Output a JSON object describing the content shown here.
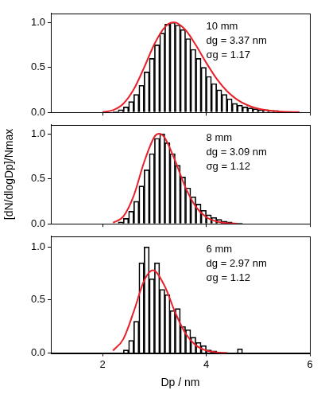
{
  "chart_data": [
    {
      "type": "histogram",
      "annotations": [
        "10 mm",
        "dg = 3.37 nm",
        "σg = 1.17"
      ],
      "bins": [
        2.2,
        2.3,
        2.4,
        2.5,
        2.6,
        2.7,
        2.8,
        2.9,
        3.0,
        3.1,
        3.2,
        3.3,
        3.4,
        3.5,
        3.6,
        3.7,
        3.8,
        3.9,
        4.0,
        4.1,
        4.2,
        4.3,
        4.4,
        4.5,
        4.6,
        4.7,
        4.8,
        4.9,
        5.0,
        5.1,
        5.2,
        5.3,
        5.4,
        5.5,
        5.6
      ],
      "counts": [
        0.01,
        0.03,
        0.06,
        0.12,
        0.2,
        0.3,
        0.45,
        0.6,
        0.75,
        0.88,
        0.98,
        1.0,
        0.97,
        0.92,
        0.82,
        0.7,
        0.6,
        0.5,
        0.4,
        0.32,
        0.25,
        0.2,
        0.15,
        0.1,
        0.08,
        0.06,
        0.05,
        0.04,
        0.03,
        0.03,
        0.02,
        0.02,
        0.01,
        0.01
      ],
      "color": "#000000",
      "series": [
        {
          "type": "line",
          "color": "#e8202a",
          "x": [
            2.0,
            2.2,
            2.4,
            2.6,
            2.8,
            3.0,
            3.2,
            3.37,
            3.6,
            3.8,
            4.0,
            4.2,
            4.4,
            4.6,
            4.8,
            5.0,
            5.4,
            5.8
          ],
          "values": [
            0.004,
            0.025,
            0.097,
            0.255,
            0.498,
            0.76,
            0.947,
            1.0,
            0.915,
            0.746,
            0.551,
            0.374,
            0.236,
            0.14,
            0.079,
            0.042,
            0.011,
            0.003
          ]
        }
      ],
      "xlim": [
        1,
        6
      ],
      "xticks": [
        2,
        4,
        6
      ],
      "ylim": [
        0,
        1.1
      ],
      "yticks": [
        {
          "value": 0,
          "label": "0.0"
        },
        {
          "value": 0.5,
          "label": "0.5"
        },
        {
          "value": 1,
          "label": "1.0"
        }
      ],
      "grid": false,
      "tick_labels": "y"
    },
    {
      "type": "histogram",
      "ylabel": "[dN/dlogDp]/Nmax",
      "annotations": [
        "8 mm",
        "dg = 3.09 nm",
        "σg = 1.12"
      ],
      "bins": [
        2.3,
        2.4,
        2.5,
        2.6,
        2.7,
        2.8,
        2.9,
        3.0,
        3.1,
        3.2,
        3.3,
        3.4,
        3.5,
        3.6,
        3.7,
        3.8,
        3.9,
        4.0,
        4.1,
        4.2,
        4.3,
        4.4,
        4.5,
        4.6,
        4.7
      ],
      "counts": [
        0.02,
        0.06,
        0.14,
        0.25,
        0.42,
        0.6,
        0.78,
        0.95,
        1.0,
        0.9,
        0.78,
        0.65,
        0.52,
        0.4,
        0.3,
        0.22,
        0.15,
        0.1,
        0.07,
        0.05,
        0.03,
        0.02,
        0.01,
        0.01
      ],
      "color": "#000000",
      "series": [
        {
          "type": "line",
          "color": "#e8202a",
          "x": [
            2.2,
            2.4,
            2.6,
            2.8,
            3.0,
            3.09,
            3.2,
            3.4,
            3.6,
            3.8,
            4.0,
            4.2,
            4.4,
            4.6
          ],
          "values": [
            0.011,
            0.083,
            0.313,
            0.685,
            0.967,
            1.0,
            0.954,
            0.7,
            0.403,
            0.189,
            0.075,
            0.026,
            0.008,
            0.002
          ]
        }
      ],
      "xlim": [
        1,
        6
      ],
      "xticks": [
        2,
        4,
        6
      ],
      "ylim": [
        0,
        1.1
      ],
      "yticks": [
        {
          "value": 0,
          "label": "0.0"
        },
        {
          "value": 0.5,
          "label": "0.5"
        },
        {
          "value": 1,
          "label": "1.0"
        }
      ],
      "grid": false,
      "tick_labels": "y"
    },
    {
      "type": "histogram",
      "xlabel": "Dp / nm",
      "annotations": [
        "6 mm",
        "dg = 2.97 nm",
        "σg = 1.12"
      ],
      "bins": [
        2.4,
        2.5,
        2.6,
        2.7,
        2.8,
        2.9,
        3.0,
        3.1,
        3.2,
        3.3,
        3.4,
        3.5,
        3.6,
        3.7,
        3.8,
        3.9,
        4.0,
        4.1,
        4.2,
        4.3,
        4.4,
        4.5,
        4.6,
        4.7
      ],
      "counts": [
        0.03,
        0.12,
        0.3,
        0.85,
        1.0,
        0.7,
        0.85,
        0.6,
        0.55,
        0.4,
        0.42,
        0.25,
        0.22,
        0.15,
        0.1,
        0.07,
        0.03,
        0.02,
        0,
        0,
        0,
        0,
        0.04
      ],
      "color": "#000000",
      "series": [
        {
          "type": "line",
          "color": "#e8202a",
          "x": [
            2.2,
            2.4,
            2.6,
            2.8,
            2.97,
            3.2,
            3.4,
            3.6,
            3.8,
            4.0,
            4.2,
            4.4
          ],
          "values": [
            0.023,
            0.133,
            0.391,
            0.682,
            0.78,
            0.628,
            0.383,
            0.185,
            0.073,
            0.025,
            0.007,
            0.002
          ]
        }
      ],
      "xlim": [
        1,
        6
      ],
      "xticks": [
        2,
        4,
        6
      ],
      "ylim": [
        0,
        1.1
      ],
      "yticks": [
        {
          "value": 0,
          "label": "0.0"
        },
        {
          "value": 0.5,
          "label": "0.5"
        },
        {
          "value": 1,
          "label": "1.0"
        }
      ],
      "grid": false
    }
  ]
}
